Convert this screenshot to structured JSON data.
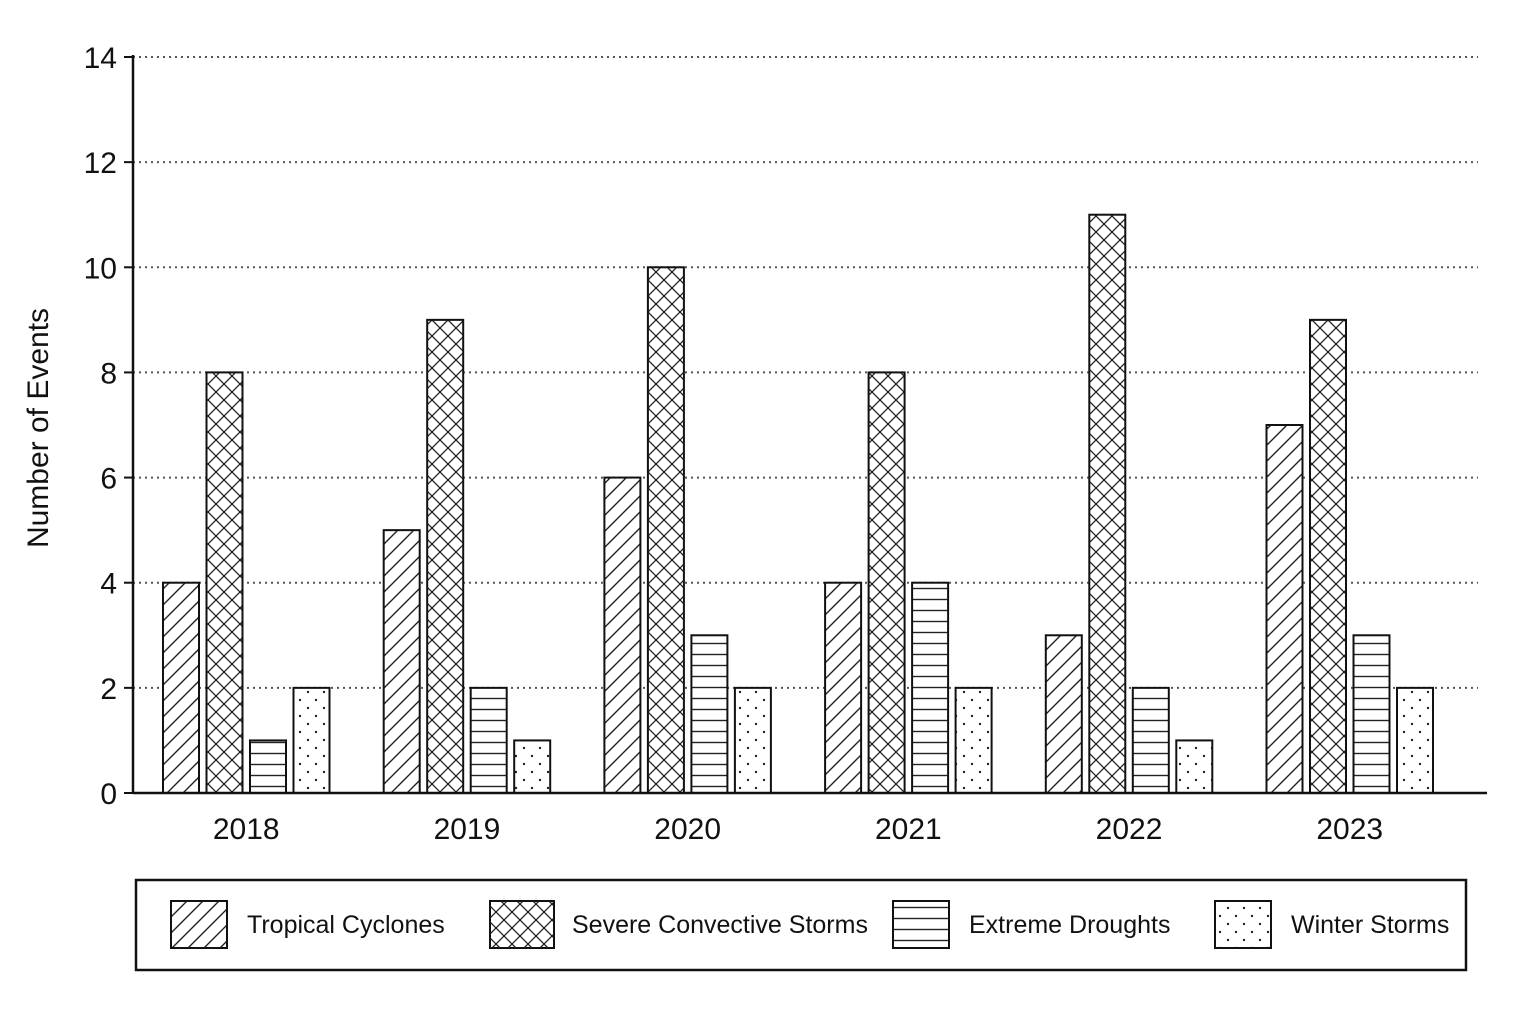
{
  "chart_data": {
    "type": "bar",
    "title": "",
    "xlabel": "",
    "ylabel": "Number of Events",
    "ylim": [
      0,
      14
    ],
    "yticks": [
      0,
      2,
      4,
      6,
      8,
      10,
      12,
      14
    ],
    "grid": true,
    "legend_position": "bottom",
    "categories": [
      "2018",
      "2019",
      "2020",
      "2021",
      "2022",
      "2023"
    ],
    "series": [
      {
        "name": "Tropical Cyclones",
        "pattern": "diagonal-hatch",
        "values": [
          4,
          5,
          6,
          4,
          3,
          7
        ]
      },
      {
        "name": "Severe Convective Storms",
        "pattern": "cross-hatch",
        "values": [
          8,
          9,
          10,
          8,
          11,
          9
        ]
      },
      {
        "name": "Extreme Droughts",
        "pattern": "horizontal-lines",
        "values": [
          1,
          2,
          3,
          4,
          2,
          3
        ]
      },
      {
        "name": "Winter Storms",
        "pattern": "dots",
        "values": [
          2,
          1,
          2,
          2,
          1,
          2
        ]
      }
    ],
    "colors": {
      "stroke": "#111111",
      "fill": "#ffffff",
      "grid": "#555555"
    }
  }
}
